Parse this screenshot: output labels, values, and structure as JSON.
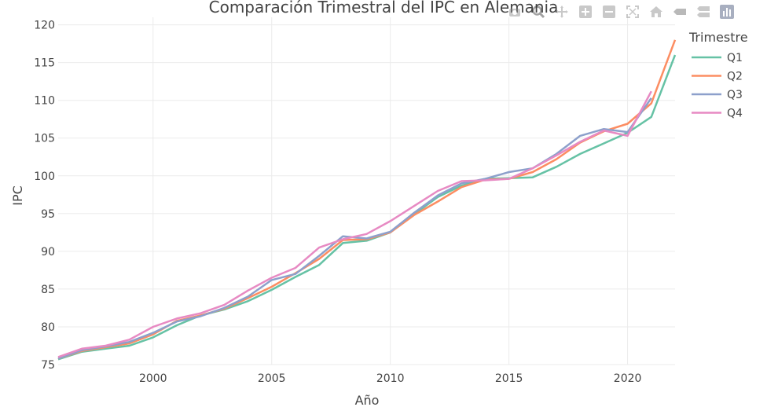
{
  "chart_data": {
    "type": "line",
    "title": "Comparación Trimestral del IPC en Alemania",
    "xlabel": "Año",
    "ylabel": "IPC",
    "xlim": [
      1996,
      2022
    ],
    "ylim": [
      75,
      121
    ],
    "x_ticks": [
      2000,
      2005,
      2010,
      2015,
      2020
    ],
    "y_ticks": [
      75,
      80,
      85,
      90,
      95,
      100,
      105,
      110,
      115,
      120
    ],
    "grid": true,
    "legend_position": "top-right",
    "legend_title": "Trimestre",
    "series": [
      {
        "name": "Q1",
        "color": "#66c2a5",
        "x": [
          1996,
          1997,
          1998,
          1999,
          2000,
          2001,
          2002,
          2003,
          2004,
          2005,
          2006,
          2007,
          2008,
          2009,
          2010,
          2011,
          2012,
          2013,
          2014,
          2015,
          2016,
          2017,
          2018,
          2019,
          2020,
          2021,
          2022
        ],
        "values": [
          75.7,
          76.7,
          77.1,
          77.5,
          78.6,
          80.2,
          81.5,
          82.3,
          83.4,
          84.9,
          86.6,
          88.2,
          91.1,
          91.4,
          92.5,
          94.9,
          97.2,
          98.7,
          99.6,
          99.7,
          99.8,
          101.2,
          102.9,
          104.3,
          105.7,
          107.8,
          116.0
        ]
      },
      {
        "name": "Q2",
        "color": "#fc8d62",
        "x": [
          1996,
          1997,
          1998,
          1999,
          2000,
          2001,
          2002,
          2003,
          2004,
          2005,
          2006,
          2007,
          2008,
          2009,
          2010,
          2011,
          2012,
          2013,
          2014,
          2015,
          2016,
          2017,
          2018,
          2019,
          2020,
          2021,
          2022
        ],
        "values": [
          75.8,
          76.8,
          77.3,
          77.8,
          79.0,
          80.8,
          81.5,
          82.4,
          83.8,
          85.3,
          87.1,
          89.0,
          91.5,
          91.6,
          92.5,
          94.8,
          96.6,
          98.5,
          99.5,
          99.6,
          100.5,
          102.2,
          104.4,
          105.9,
          106.9,
          109.6,
          118.0
        ]
      },
      {
        "name": "Q3",
        "color": "#8da0cb",
        "x": [
          1996,
          1997,
          1998,
          1999,
          2000,
          2001,
          2002,
          2003,
          2004,
          2005,
          2006,
          2007,
          2008,
          2009,
          2010,
          2011,
          2012,
          2013,
          2014,
          2015,
          2016,
          2017,
          2018,
          2019,
          2020,
          2021
        ],
        "values": [
          75.8,
          76.9,
          77.4,
          78.0,
          79.2,
          80.7,
          81.4,
          82.5,
          84.0,
          86.2,
          87.0,
          89.4,
          92.0,
          91.7,
          92.6,
          95.1,
          97.4,
          99.0,
          99.6,
          100.5,
          101.0,
          102.9,
          105.3,
          106.2,
          105.8,
          110.3
        ]
      },
      {
        "name": "Q4",
        "color": "#e78ac3",
        "x": [
          1996,
          1997,
          1998,
          1999,
          2000,
          2001,
          2002,
          2003,
          2004,
          2005,
          2006,
          2007,
          2008,
          2009,
          2010,
          2011,
          2012,
          2013,
          2014,
          2015,
          2016,
          2017,
          2018,
          2019,
          2020,
          2021
        ],
        "values": [
          76.0,
          77.1,
          77.5,
          78.3,
          80.0,
          81.1,
          81.8,
          82.9,
          84.8,
          86.5,
          87.8,
          90.5,
          91.6,
          92.3,
          94.0,
          96.0,
          98.0,
          99.3,
          99.4,
          99.6,
          101.0,
          102.7,
          104.5,
          106.0,
          105.3,
          111.2
        ]
      }
    ]
  },
  "modebar": {
    "icons": [
      "camera-icon",
      "zoom-icon",
      "pan-icon",
      "zoom-in-icon",
      "zoom-out-icon",
      "autoscale-icon",
      "home-icon",
      "hover-closest-icon",
      "hover-compare-icon",
      "plotly-logo-icon"
    ]
  }
}
